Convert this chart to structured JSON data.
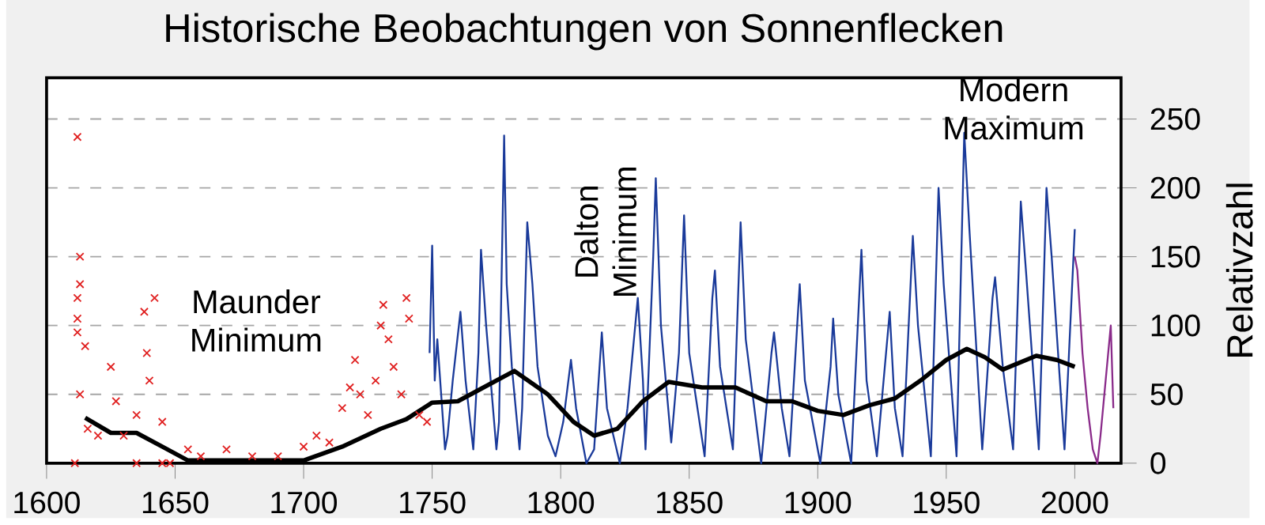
{
  "chart_data": {
    "type": "line",
    "title": "Historische Beobachtungen von Sonnenflecken",
    "ylabel": "Relativzahl",
    "xlim": [
      1600,
      2018
    ],
    "xticks": [
      1600,
      1650,
      1700,
      1750,
      1800,
      1850,
      1900,
      1950,
      2000
    ],
    "ylim": [
      0,
      280
    ],
    "yticks": [
      0,
      50,
      100,
      150,
      200,
      250
    ],
    "grid": "y",
    "annotations": [
      "Maunder Minimum",
      "Dalton Minimum",
      "Modern Maximum"
    ],
    "series": [
      {
        "type": "scatter",
        "marker": "cross",
        "color": "#e02020",
        "x": [
          1611,
          1612,
          1612,
          1612,
          1612,
          1613,
          1613,
          1613,
          1615,
          1616,
          1620,
          1625,
          1627,
          1630,
          1635,
          1635,
          1638,
          1639,
          1640,
          1642,
          1645,
          1645,
          1648,
          1655,
          1660,
          1670,
          1680,
          1690,
          1700,
          1705,
          1710,
          1715,
          1718,
          1720,
          1722,
          1725,
          1728,
          1730,
          1731,
          1733,
          1735,
          1738,
          1740,
          1741,
          1745,
          1748
        ],
        "values": [
          0,
          95,
          105,
          237,
          120,
          130,
          150,
          50,
          85,
          25,
          20,
          70,
          45,
          20,
          35,
          0,
          110,
          80,
          60,
          120,
          30,
          0,
          0,
          10,
          5,
          10,
          5,
          5,
          12,
          20,
          15,
          40,
          55,
          75,
          50,
          35,
          60,
          100,
          115,
          90,
          70,
          50,
          120,
          105,
          35,
          30
        ]
      },
      {
        "type": "line",
        "marker": "none",
        "line_style": "solid",
        "color": "#1a3a9a",
        "x": [
          1749,
          1750,
          1751,
          1752,
          1755,
          1756,
          1758,
          1761,
          1763,
          1766,
          1768,
          1769,
          1771,
          1775,
          1776,
          1778,
          1779,
          1781,
          1784,
          1785,
          1787,
          1789,
          1791,
          1795,
          1798,
          1801,
          1804,
          1806,
          1810,
          1813,
          1816,
          1818,
          1823,
          1826,
          1830,
          1832,
          1833,
          1836,
          1837,
          1839,
          1843,
          1846,
          1848,
          1850,
          1856,
          1859,
          1860,
          1862,
          1867,
          1870,
          1872,
          1878,
          1882,
          1883,
          1886,
          1889,
          1892,
          1893,
          1895,
          1901,
          1905,
          1906,
          1908,
          1913,
          1917,
          1919,
          1923,
          1928,
          1930,
          1933,
          1937,
          1939,
          1944,
          1947,
          1949,
          1954,
          1957,
          1959,
          1964,
          1968,
          1969,
          1972,
          1976,
          1979,
          1981,
          1986,
          1989,
          1991,
          1996,
          2000
        ],
        "values": [
          80,
          158,
          60,
          90,
          10,
          20,
          60,
          110,
          60,
          10,
          80,
          155,
          100,
          10,
          30,
          238,
          130,
          70,
          10,
          40,
          175,
          130,
          70,
          20,
          5,
          30,
          75,
          40,
          0,
          10,
          95,
          40,
          0,
          40,
          120,
          60,
          10,
          150,
          207,
          100,
          15,
          80,
          180,
          80,
          5,
          120,
          140,
          70,
          10,
          175,
          90,
          0,
          80,
          95,
          40,
          5,
          100,
          130,
          60,
          0,
          70,
          105,
          50,
          0,
          155,
          60,
          5,
          110,
          40,
          5,
          165,
          100,
          5,
          200,
          130,
          5,
          240,
          170,
          10,
          120,
          135,
          70,
          10,
          190,
          140,
          10,
          200,
          150,
          10,
          170
        ]
      },
      {
        "type": "line",
        "marker": "none",
        "line_style": "solid",
        "color": "#8a2b8a",
        "x": [
          2000,
          2001,
          2003,
          2005,
          2007,
          2008.8,
          2010,
          2012,
          2014,
          2015
        ],
        "values": [
          150,
          140,
          80,
          40,
          10,
          0,
          20,
          60,
          100,
          40
        ]
      },
      {
        "marker": "none",
        "line_style": "solid",
        "color": "#000000",
        "x": [
          1615,
          1625,
          1635,
          1645,
          1655,
          1700,
          1715,
          1730,
          1740,
          1750,
          1760,
          1770,
          1782,
          1795,
          1805,
          1813,
          1822,
          1832,
          1842,
          1855,
          1868,
          1880,
          1890,
          1900,
          1910,
          1920,
          1930,
          1940,
          1950,
          1958,
          1965,
          1972,
          1985,
          1993,
          2000
        ],
        "values": [
          33,
          22,
          22,
          12,
          2,
          2,
          12,
          25,
          32,
          44,
          45,
          55,
          67,
          50,
          30,
          20,
          25,
          45,
          59,
          55,
          55,
          45,
          45,
          38,
          35,
          42,
          47,
          60,
          75,
          83,
          77,
          68,
          78,
          75,
          70
        ]
      }
    ]
  }
}
